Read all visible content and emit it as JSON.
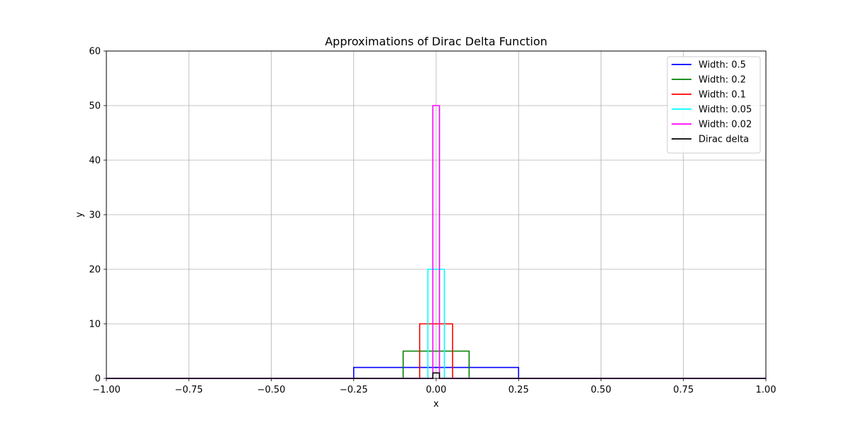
{
  "chart_data": {
    "type": "line",
    "title": "Approximations of Dirac Delta Function",
    "xlabel": "x",
    "ylabel": "y",
    "xlim": [
      -1.0,
      1.0
    ],
    "ylim": [
      0,
      60
    ],
    "xticks": [
      -1.0,
      -0.75,
      -0.5,
      -0.25,
      0.0,
      0.25,
      0.5,
      0.75,
      1.0
    ],
    "xtick_labels": [
      "−1.00",
      "−0.75",
      "−0.50",
      "−0.25",
      "0.00",
      "0.25",
      "0.50",
      "0.75",
      "1.00"
    ],
    "yticks": [
      0,
      10,
      20,
      30,
      40,
      50,
      60
    ],
    "ytick_labels": [
      "0",
      "10",
      "20",
      "30",
      "40",
      "50",
      "60"
    ],
    "grid": true,
    "legend_position": "top-right",
    "series": [
      {
        "name": "Width: 0.5",
        "color": "#0000ff",
        "x": [
          -1.0,
          -0.25,
          -0.25,
          0.25,
          0.25,
          1.0
        ],
        "y": [
          0,
          0,
          2,
          2,
          0,
          0
        ]
      },
      {
        "name": "Width: 0.2",
        "color": "#008000",
        "x": [
          -1.0,
          -0.1,
          -0.1,
          0.1,
          0.1,
          1.0
        ],
        "y": [
          0,
          0,
          5,
          5,
          0,
          0
        ]
      },
      {
        "name": "Width: 0.1",
        "color": "#ff0000",
        "x": [
          -1.0,
          -0.05,
          -0.05,
          0.05,
          0.05,
          1.0
        ],
        "y": [
          0,
          0,
          10,
          10,
          0,
          0
        ]
      },
      {
        "name": "Width: 0.05",
        "color": "#00ffff",
        "x": [
          -1.0,
          -0.025,
          -0.025,
          0.025,
          0.025,
          1.0
        ],
        "y": [
          0,
          0,
          20,
          20,
          0,
          0
        ]
      },
      {
        "name": "Width: 0.02",
        "color": "#ff00ff",
        "x": [
          -1.0,
          -0.01,
          -0.01,
          0.01,
          0.01,
          1.0
        ],
        "y": [
          0,
          0,
          50,
          50,
          0,
          0
        ]
      },
      {
        "name": "Dirac delta",
        "color": "#000000",
        "x": [
          -1.0,
          -0.01,
          -0.01,
          0.01,
          0.01,
          1.0
        ],
        "y": [
          0,
          0,
          1,
          1,
          0,
          0
        ]
      }
    ]
  }
}
